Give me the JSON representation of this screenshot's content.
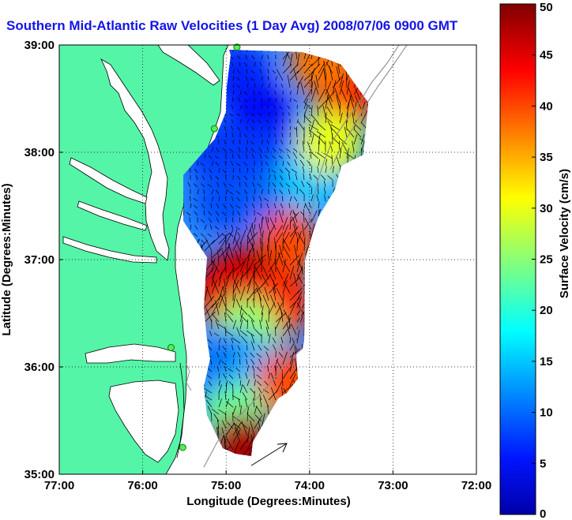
{
  "title": "Southern Mid-Atlantic Raw Velocities (1 Day Avg) 2008/07/06 0900 GMT",
  "map": {
    "xlabel": "Longitude (Degrees:Minutes)",
    "ylabel": "Latitude (Degrees:Minutes)",
    "xticks": [
      {
        "lon": -77,
        "label": "77:00"
      },
      {
        "lon": -76,
        "label": "76:00"
      },
      {
        "lon": -75,
        "label": "75:00"
      },
      {
        "lon": -74,
        "label": "74:00"
      },
      {
        "lon": -73,
        "label": "73:00"
      },
      {
        "lon": -72,
        "label": "72:00"
      }
    ],
    "yticks": [
      {
        "lat": 35,
        "label": "35:00"
      },
      {
        "lat": 36,
        "label": "36:00"
      },
      {
        "lat": 37,
        "label": "37:00"
      },
      {
        "lat": 38,
        "label": "38:00"
      },
      {
        "lat": 39,
        "label": "39:00"
      }
    ],
    "xlim": [
      -77,
      -72
    ],
    "ylim": [
      35,
      39
    ],
    "grid": "dotted",
    "land_color": "#55f5a8",
    "stations": [
      {
        "lon": -74.87,
        "lat": 38.98
      },
      {
        "lon": -75.14,
        "lat": 38.22
      },
      {
        "lon": -75.66,
        "lat": 36.18
      },
      {
        "lon": -75.52,
        "lat": 35.25
      }
    ]
  },
  "colorbar": {
    "label": "Surface Velocity (cm/s)",
    "units": "cm/s",
    "range": [
      0,
      50
    ],
    "ticks": [
      {
        "v": 0,
        "label": "0"
      },
      {
        "v": 5,
        "label": "5"
      },
      {
        "v": 10,
        "label": "10"
      },
      {
        "v": 15,
        "label": "15"
      },
      {
        "v": 20,
        "label": "20"
      },
      {
        "v": 25,
        "label": "25"
      },
      {
        "v": 30,
        "label": "30"
      },
      {
        "v": 35,
        "label": "35"
      },
      {
        "v": 40,
        "label": "40"
      },
      {
        "v": 45,
        "label": "45"
      },
      {
        "v": 50,
        "label": "50"
      }
    ],
    "colormap": "jet"
  },
  "speed_field": [
    {
      "lon": -74.85,
      "lat": 38.7,
      "speed": 8
    },
    {
      "lon": -74.55,
      "lat": 38.3,
      "speed": 6
    },
    {
      "lon": -75.1,
      "lat": 38.0,
      "speed": 9
    },
    {
      "lon": -74.5,
      "lat": 37.95,
      "speed": 9
    },
    {
      "lon": -75.0,
      "lat": 37.55,
      "speed": 10
    },
    {
      "lon": -74.4,
      "lat": 37.55,
      "speed": 11
    },
    {
      "lon": -74.0,
      "lat": 37.75,
      "speed": 16
    },
    {
      "lon": -73.55,
      "lat": 38.55,
      "speed": 44
    },
    {
      "lon": -73.85,
      "lat": 38.85,
      "speed": 38
    },
    {
      "lon": -73.75,
      "lat": 38.1,
      "speed": 30
    },
    {
      "lon": -74.25,
      "lat": 37.15,
      "speed": 40
    },
    {
      "lon": -74.8,
      "lat": 36.85,
      "speed": 47
    },
    {
      "lon": -75.05,
      "lat": 36.7,
      "speed": 45
    },
    {
      "lon": -74.35,
      "lat": 36.6,
      "speed": 42
    },
    {
      "lon": -74.75,
      "lat": 36.35,
      "speed": 26
    },
    {
      "lon": -74.95,
      "lat": 36.05,
      "speed": 12
    },
    {
      "lon": -74.55,
      "lat": 35.95,
      "speed": 15
    },
    {
      "lon": -74.25,
      "lat": 35.85,
      "speed": 40
    },
    {
      "lon": -74.9,
      "lat": 35.55,
      "speed": 24
    },
    {
      "lon": -74.8,
      "lat": 35.25,
      "speed": 48
    }
  ]
}
